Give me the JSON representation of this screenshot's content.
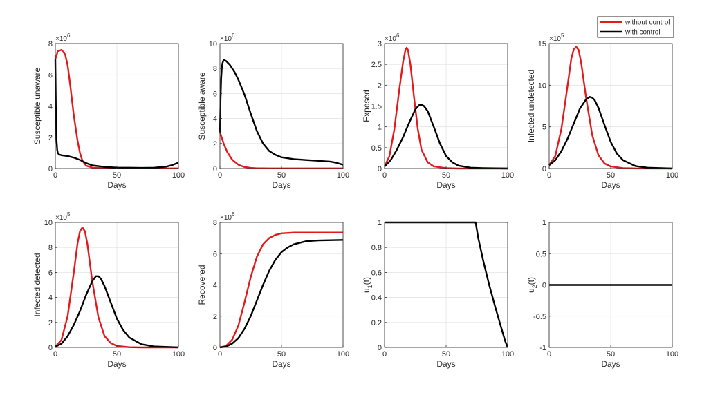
{
  "legend": {
    "location": "top-right",
    "entries": [
      {
        "name": "without control",
        "color": "#e31a1c"
      },
      {
        "name": "with control",
        "color": "#000000"
      }
    ]
  },
  "chart_data": [
    {
      "type": "line",
      "xlabel": "Days",
      "ylabel": "Susceptible unaware",
      "xlim": [
        0,
        100
      ],
      "xticks": [
        0,
        50,
        100
      ],
      "ylim": [
        0,
        8
      ],
      "yticks": [
        0,
        2,
        4,
        6,
        8
      ],
      "yexponent": "×10^6",
      "yexp_base": "×10",
      "yexp_power": "6",
      "grid": true,
      "series": [
        {
          "name": "without control",
          "color": "#e31a1c",
          "x": [
            0,
            2,
            5,
            8,
            10,
            12,
            15,
            18,
            20,
            22,
            25,
            30,
            40,
            50,
            60,
            70,
            80,
            90,
            100
          ],
          "y": [
            7.0,
            7.5,
            7.6,
            7.3,
            6.6,
            5.4,
            3.4,
            1.8,
            1.0,
            0.5,
            0.18,
            0.06,
            0.02,
            0.01,
            0.01,
            0.01,
            0.01,
            0.01,
            0.01
          ]
        },
        {
          "name": "with control",
          "color": "#000000",
          "x": [
            0,
            0.5,
            1,
            1.5,
            2,
            3,
            5,
            10,
            15,
            20,
            25,
            30,
            40,
            50,
            60,
            70,
            80,
            90,
            95,
            100
          ],
          "y": [
            7.0,
            3.5,
            1.8,
            1.2,
            1.0,
            0.9,
            0.85,
            0.8,
            0.7,
            0.55,
            0.35,
            0.2,
            0.1,
            0.06,
            0.05,
            0.04,
            0.05,
            0.12,
            0.22,
            0.38
          ]
        }
      ]
    },
    {
      "type": "line",
      "xlabel": "Days",
      "ylabel": "Susceptible aware",
      "xlim": [
        0,
        100
      ],
      "xticks": [
        0,
        50,
        100
      ],
      "ylim": [
        0,
        10
      ],
      "yticks": [
        0,
        2,
        4,
        6,
        8,
        10
      ],
      "yexponent": "×10^6",
      "yexp_base": "×10",
      "yexp_power": "6",
      "grid": true,
      "series": [
        {
          "name": "without control",
          "color": "#e31a1c",
          "x": [
            0,
            3,
            6,
            10,
            15,
            20,
            25,
            30,
            40,
            50,
            60,
            70,
            80,
            90,
            100
          ],
          "y": [
            2.9,
            2.0,
            1.3,
            0.7,
            0.3,
            0.12,
            0.05,
            0.02,
            0.01,
            0.01,
            0.01,
            0.01,
            0.01,
            0.01,
            0.01
          ]
        },
        {
          "name": "with control",
          "color": "#000000",
          "x": [
            0,
            0.5,
            1,
            1.5,
            2,
            3,
            5,
            8,
            12,
            15,
            20,
            25,
            30,
            35,
            40,
            45,
            50,
            60,
            70,
            80,
            90,
            95,
            100
          ],
          "y": [
            2.9,
            5.5,
            7.2,
            8.0,
            8.4,
            8.7,
            8.6,
            8.3,
            7.7,
            7.1,
            5.9,
            4.4,
            3.0,
            2.0,
            1.4,
            1.1,
            0.9,
            0.75,
            0.68,
            0.62,
            0.55,
            0.45,
            0.3
          ]
        }
      ]
    },
    {
      "type": "line",
      "xlabel": "Days",
      "ylabel": "Exposed",
      "xlim": [
        0,
        100
      ],
      "xticks": [
        0,
        50,
        100
      ],
      "ylim": [
        0,
        3
      ],
      "yticks": [
        0,
        0.5,
        1,
        1.5,
        2,
        2.5,
        3
      ],
      "yexponent": "×10^6",
      "yexp_base": "×10",
      "yexp_power": "6",
      "grid": true,
      "series": [
        {
          "name": "without control",
          "color": "#e31a1c",
          "x": [
            0,
            4,
            8,
            12,
            15,
            17,
            18,
            19,
            21,
            24,
            27,
            30,
            35,
            40,
            50,
            60,
            100
          ],
          "y": [
            0.05,
            0.3,
            0.95,
            1.9,
            2.55,
            2.85,
            2.9,
            2.85,
            2.5,
            1.7,
            0.95,
            0.45,
            0.15,
            0.05,
            0.01,
            0.0,
            0.0
          ]
        },
        {
          "name": "with control",
          "color": "#000000",
          "x": [
            0,
            5,
            10,
            15,
            20,
            25,
            28,
            30,
            32,
            35,
            40,
            45,
            50,
            55,
            60,
            70,
            80,
            100
          ],
          "y": [
            0.05,
            0.2,
            0.45,
            0.75,
            1.1,
            1.42,
            1.52,
            1.53,
            1.5,
            1.38,
            1.0,
            0.6,
            0.3,
            0.15,
            0.07,
            0.02,
            0.01,
            0.0
          ]
        }
      ]
    },
    {
      "type": "line",
      "xlabel": "Days",
      "ylabel": "Infected undetected",
      "xlim": [
        0,
        100
      ],
      "xticks": [
        0,
        50,
        100
      ],
      "ylim": [
        0,
        15
      ],
      "yticks": [
        0,
        5,
        10,
        15
      ],
      "yexponent": "×10^5",
      "yexp_base": "×10",
      "yexp_power": "5",
      "grid": true,
      "series": [
        {
          "name": "without control",
          "color": "#e31a1c",
          "x": [
            0,
            5,
            10,
            15,
            18,
            20,
            22,
            24,
            26,
            30,
            35,
            40,
            45,
            50,
            60,
            70,
            100
          ],
          "y": [
            0.4,
            1.5,
            4.8,
            10.0,
            13.2,
            14.3,
            14.6,
            14.2,
            12.7,
            8.5,
            4.0,
            1.6,
            0.6,
            0.25,
            0.05,
            0.01,
            0.0
          ]
        },
        {
          "name": "with control",
          "color": "#000000",
          "x": [
            0,
            5,
            10,
            15,
            20,
            25,
            30,
            33,
            35,
            37,
            40,
            45,
            50,
            55,
            60,
            70,
            80,
            100
          ],
          "y": [
            0.4,
            1.0,
            2.1,
            3.6,
            5.4,
            7.2,
            8.3,
            8.6,
            8.5,
            8.2,
            7.3,
            5.2,
            3.2,
            1.8,
            1.0,
            0.3,
            0.1,
            0.0
          ]
        }
      ]
    },
    {
      "type": "line",
      "xlabel": "Days",
      "ylabel": "Infected detected",
      "xlim": [
        0,
        100
      ],
      "xticks": [
        0,
        50,
        100
      ],
      "ylim": [
        0,
        10
      ],
      "yticks": [
        0,
        2,
        4,
        6,
        8,
        10
      ],
      "yexponent": "×10^5",
      "yexp_base": "×10",
      "yexp_power": "5",
      "grid": true,
      "series": [
        {
          "name": "without control",
          "color": "#e31a1c",
          "x": [
            0,
            5,
            10,
            15,
            18,
            20,
            22,
            24,
            26,
            30,
            35,
            40,
            45,
            50,
            60,
            70,
            100
          ],
          "y": [
            0.05,
            0.6,
            2.5,
            6.0,
            8.3,
            9.3,
            9.6,
            9.3,
            8.3,
            5.3,
            2.4,
            0.9,
            0.35,
            0.12,
            0.02,
            0.0,
            0.0
          ]
        },
        {
          "name": "with control",
          "color": "#000000",
          "x": [
            0,
            5,
            10,
            15,
            20,
            25,
            30,
            33,
            35,
            37,
            40,
            45,
            50,
            55,
            60,
            70,
            80,
            100
          ],
          "y": [
            0.05,
            0.3,
            0.9,
            1.8,
            2.9,
            4.2,
            5.3,
            5.7,
            5.7,
            5.5,
            4.9,
            3.6,
            2.3,
            1.4,
            0.8,
            0.25,
            0.08,
            0.0
          ]
        }
      ]
    },
    {
      "type": "line",
      "xlabel": "Days",
      "ylabel": "Recovered",
      "xlim": [
        0,
        100
      ],
      "xticks": [
        0,
        50,
        100
      ],
      "ylim": [
        0,
        8
      ],
      "yticks": [
        0,
        2,
        4,
        6,
        8
      ],
      "yexponent": "×10^6",
      "yexp_base": "×10",
      "yexp_power": "6",
      "grid": true,
      "series": [
        {
          "name": "without control",
          "color": "#e31a1c",
          "x": [
            0,
            5,
            10,
            15,
            20,
            25,
            30,
            35,
            40,
            45,
            50,
            60,
            70,
            80,
            100
          ],
          "y": [
            0.0,
            0.1,
            0.5,
            1.4,
            2.9,
            4.5,
            5.8,
            6.6,
            7.0,
            7.2,
            7.3,
            7.35,
            7.35,
            7.35,
            7.35
          ]
        },
        {
          "name": "with control",
          "color": "#000000",
          "x": [
            0,
            5,
            10,
            15,
            20,
            25,
            30,
            35,
            40,
            45,
            50,
            55,
            60,
            70,
            80,
            100
          ],
          "y": [
            0.0,
            0.05,
            0.25,
            0.6,
            1.2,
            2.0,
            3.0,
            4.0,
            4.9,
            5.6,
            6.1,
            6.4,
            6.6,
            6.8,
            6.85,
            6.88
          ]
        }
      ]
    },
    {
      "type": "line",
      "xlabel": "Days",
      "ylabel": "u1(t)",
      "ylabel_base": "u",
      "ylabel_sub": "1",
      "ylabel_rest": "(t)",
      "xlim": [
        0,
        100
      ],
      "xticks": [
        0,
        50,
        100
      ],
      "ylim": [
        0,
        1
      ],
      "yticks": [
        0,
        0.2,
        0.4,
        0.6,
        0.8,
        1
      ],
      "grid": true,
      "series": [
        {
          "name": "with control",
          "color": "#000000",
          "x": [
            0,
            74,
            76,
            80,
            85,
            90,
            95,
            98,
            100
          ],
          "y": [
            1,
            1,
            0.88,
            0.7,
            0.5,
            0.32,
            0.15,
            0.05,
            0.0
          ]
        }
      ]
    },
    {
      "type": "line",
      "xlabel": "Days",
      "ylabel": "u2(t)",
      "ylabel_base": "u",
      "ylabel_sub": "2",
      "ylabel_rest": "(t)",
      "xlim": [
        0,
        100
      ],
      "xticks": [
        0,
        50,
        100
      ],
      "ylim": [
        -1,
        1
      ],
      "yticks": [
        -1,
        -0.5,
        0,
        0.5,
        1
      ],
      "grid": true,
      "series": [
        {
          "name": "with control",
          "color": "#000000",
          "x": [
            0,
            100
          ],
          "y": [
            0,
            0
          ]
        }
      ]
    }
  ]
}
